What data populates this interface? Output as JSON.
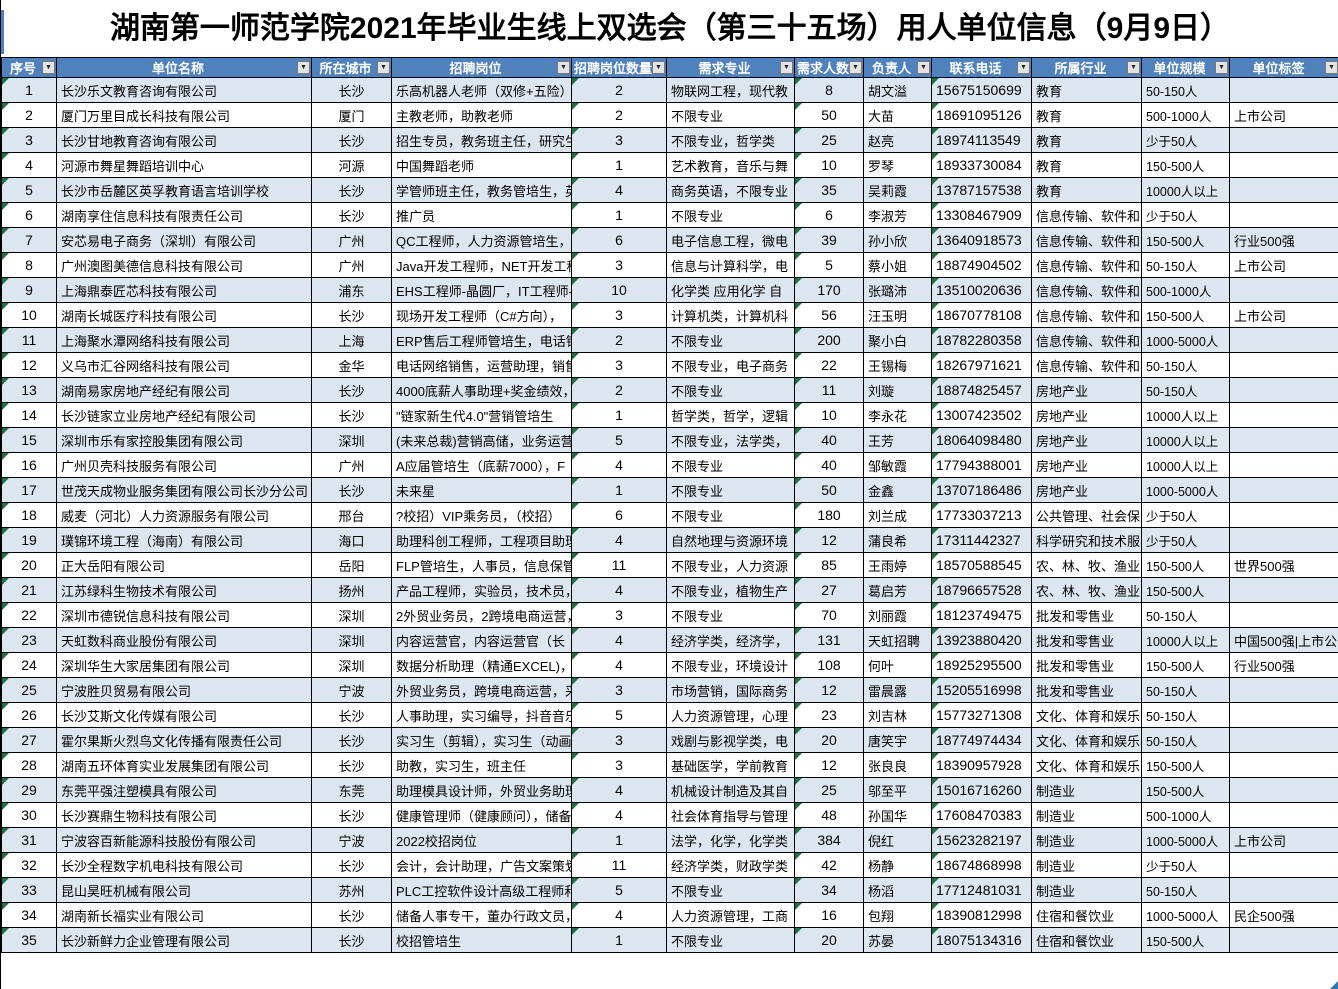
{
  "title": "湖南第一师范学院2021年毕业生线上双选会（第三十五场）用人单位信息（9月9日）",
  "colors": {
    "header_bg": "#4f81bd",
    "row_stripe": "#dce6f1",
    "row_alt": "#ffffff",
    "grid_border": "#000000",
    "error_triangle_green": "#1e7145",
    "corner_marker_blue": "#2e75b6"
  },
  "icons": {
    "filter_dropdown": "▼"
  },
  "error_indicator_columns": [
    0,
    4,
    6,
    8
  ],
  "columns": [
    {
      "key": "xuhao",
      "label": "序号"
    },
    {
      "key": "danwei",
      "label": "单位名称"
    },
    {
      "key": "chengshi",
      "label": "所在城市"
    },
    {
      "key": "gangwei",
      "label": "招聘岗位"
    },
    {
      "key": "shuliang",
      "label": "招聘岗位数量"
    },
    {
      "key": "zhuanye",
      "label": "需求专业"
    },
    {
      "key": "renshu",
      "label": "需求人数"
    },
    {
      "key": "fuzeren",
      "label": "负责人"
    },
    {
      "key": "dianhua",
      "label": "联系电话"
    },
    {
      "key": "hangye",
      "label": "所属行业"
    },
    {
      "key": "guimo",
      "label": "单位规模"
    },
    {
      "key": "biaoqian",
      "label": "单位标签"
    }
  ],
  "rows": [
    [
      "1",
      "长沙乐文教育咨询有限公司",
      "长沙",
      "乐高机器人老师（双修+五险）",
      "2",
      "物联网工程，现代教",
      "8",
      "胡文溢",
      "15675150699",
      "教育",
      "50-150人",
      ""
    ],
    [
      "2",
      "厦门万里目成长科技有限公司",
      "厦门",
      "主教老师，助教老师",
      "2",
      "不限专业",
      "50",
      "大苗",
      "18691095126",
      "教育",
      "500-1000人",
      "上市公司"
    ],
    [
      "3",
      "长沙甘地教育咨询有限公司",
      "长沙",
      "招生专员，教务班主任，研究生",
      "3",
      "不限专业，哲学类",
      "25",
      "赵亮",
      "18974113549",
      "教育",
      "少于50人",
      ""
    ],
    [
      "4",
      "河源市舞星舞蹈培训中心",
      "河源",
      "中国舞蹈老师",
      "1",
      "艺术教育，音乐与舞",
      "10",
      "罗琴",
      "18933730084",
      "教育",
      "150-500人",
      ""
    ],
    [
      "5",
      "长沙市岳麓区英孚教育语言培训学校",
      "长沙",
      "学管师班主任，教务管培生，英",
      "4",
      "商务英语，不限专业",
      "35",
      "吴莉霞",
      "13787157538",
      "教育",
      "10000人以上",
      ""
    ],
    [
      "6",
      "湖南享住信息科技有限责任公司",
      "长沙",
      "推广员",
      "1",
      "不限专业",
      "6",
      "李淑芳",
      "13308467909",
      "信息传输、软件和",
      "少于50人",
      ""
    ],
    [
      "7",
      "安芯易电子商务（深圳）有限公司",
      "广州",
      "QC工程师，人力资源管培生，",
      "6",
      "电子信息工程，微电",
      "39",
      "孙小欣",
      "13640918573",
      "信息传输、软件和",
      "150-500人",
      "行业500强"
    ],
    [
      "8",
      "广州澳图美德信息科技有限公司",
      "广州",
      "Java开发工程师，NET开发工程",
      "3",
      "信息与计算科学，电",
      "5",
      "蔡小姐",
      "18874904502",
      "信息传输、软件和",
      "50-150人",
      "上市公司"
    ],
    [
      "9",
      "上海鼎泰匠芯科技有限公司",
      "浦东",
      "EHS工程师-晶圆厂，IT工程师-",
      "10",
      "化学类 应用化学 自",
      "170",
      "张璐沛",
      "13510020636",
      "信息传输、软件和",
      "500-1000人",
      ""
    ],
    [
      "10",
      "湖南长城医疗科技有限公司",
      "长沙",
      "现场开发工程师（C#方向），",
      "3",
      "计算机类，计算机科",
      "56",
      "汪玉明",
      "18670778108",
      "信息传输、软件和",
      "150-500人",
      "上市公司"
    ],
    [
      "11",
      "上海聚水潭网络科技有限公司",
      "上海",
      "ERP售后工程师管培生，电话销",
      "2",
      "不限专业",
      "200",
      "聚小白",
      "18782280358",
      "信息传输、软件和",
      "1000-5000人",
      ""
    ],
    [
      "12",
      "义乌市汇谷网络科技有限公司",
      "金华",
      "电话网络销售，运营助理，销售",
      "3",
      "不限专业，电子商务",
      "22",
      "王锡梅",
      "18267971621",
      "信息传输、软件和",
      "50-150人",
      ""
    ],
    [
      "13",
      "湖南易家房地产经纪有限公司",
      "长沙",
      "4000底薪人事助理+奖金绩效，",
      "2",
      "不限专业",
      "11",
      "刘璇",
      "18874825457",
      "房地产业",
      "50-150人",
      ""
    ],
    [
      "14",
      "长沙链家立业房地产经纪有限公司",
      "长沙",
      "\"链家新生代4.0\"营销管培生",
      "1",
      "哲学类，哲学，逻辑",
      "10",
      "李永花",
      "13007423502",
      "房地产业",
      "10000人以上",
      ""
    ],
    [
      "15",
      "深圳市乐有家控股集团有限公司",
      "深圳",
      "(未来总裁)营销高储，业务运营",
      "5",
      "不限专业，法学类，",
      "40",
      "王芳",
      "18064098480",
      "房地产业",
      "10000人以上",
      ""
    ],
    [
      "16",
      "广州贝壳科技服务有限公司",
      "广州",
      "A应届管培生（底薪7000），F",
      "4",
      "不限专业",
      "40",
      "邹敏霞",
      "17794388001",
      "房地产业",
      "10000人以上",
      ""
    ],
    [
      "17",
      "世茂天成物业服务集团有限公司长沙分公司",
      "长沙",
      "未来星",
      "1",
      "不限专业",
      "50",
      "金鑫",
      "13707186486",
      "房地产业",
      "1000-5000人",
      ""
    ],
    [
      "18",
      "威麦（河北）人力资源服务有限公司",
      "邢台",
      "?校招）VIP乘务员，（校招）",
      "6",
      "不限专业",
      "180",
      "刘兰成",
      "17733037213",
      "公共管理、社会保",
      "少于50人",
      ""
    ],
    [
      "19",
      "璞锦环境工程（海南）有限公司",
      "海口",
      "助理科创工程师，工程项目助理",
      "4",
      "自然地理与资源环境",
      "12",
      "蒲良希",
      "17311442327",
      "科学研究和技术服",
      "少于50人",
      ""
    ],
    [
      "20",
      "正大岳阳有限公司",
      "岳阳",
      "FLP管培生，人事员，信息保管",
      "11",
      "不限专业，人力资源",
      "85",
      "王雨婷",
      "18570588545",
      "农、林、牧、渔业",
      "150-500人",
      "世界500强"
    ],
    [
      "21",
      "江苏绿科生物技术有限公司",
      "扬州",
      "产品工程师，实验员，技术员，",
      "4",
      "不限专业，植物生产",
      "27",
      "葛启芳",
      "18796657528",
      "农、林、牧、渔业",
      "150-500人",
      ""
    ],
    [
      "22",
      "深圳市德锐信息科技有限公司",
      "深圳",
      "2外贸业务员，2跨境电商运营，",
      "3",
      "不限专业",
      "70",
      "刘丽霞",
      "18123749475",
      "批发和零售业",
      "50-150人",
      ""
    ],
    [
      "23",
      "天虹数科商业股份有限公司",
      "深圳",
      "内容运营官，内容运营官（长",
      "4",
      "经济学类，经济学，",
      "131",
      "天虹招聘",
      "13923880420",
      "批发和零售业",
      "10000人以上",
      "中国500强|上市公司"
    ],
    [
      "24",
      "深圳华生大家居集团有限公司",
      "深圳",
      "数据分析助理（精通EXCEL)，",
      "4",
      "不限专业，环境设计",
      "108",
      "何叶",
      "18925295500",
      "批发和零售业",
      "150-500人",
      "行业500强"
    ],
    [
      "25",
      "宁波胜贝贸易有限公司",
      "宁波",
      "外贸业务员，跨境电商运营，采",
      "3",
      "市场营销，国际商务",
      "12",
      "雷晨露",
      "15205516998",
      "批发和零售业",
      "50-150人",
      ""
    ],
    [
      "26",
      "长沙艾斯文化传媒有限公司",
      "长沙",
      "人事助理，实习编导，抖音音乐",
      "5",
      "人力资源管理，心理",
      "23",
      "刘吉林",
      "15773271308",
      "文化、体育和娱乐",
      "50-150人",
      ""
    ],
    [
      "27",
      "霍尔果斯火烈鸟文化传播有限责任公司",
      "长沙",
      "实习生（剪辑），实习生（动画",
      "3",
      "戏剧与影视学类，电",
      "20",
      "唐笑宇",
      "18774974434",
      "文化、体育和娱乐",
      "50-150人",
      ""
    ],
    [
      "28",
      "湖南五环体育实业发展集团有限公司",
      "长沙",
      "助教，实习生，班主任",
      "3",
      "基础医学，学前教育",
      "12",
      "张良良",
      "18390957928",
      "文化、体育和娱乐",
      "150-500人",
      ""
    ],
    [
      "29",
      "东莞平强注塑模具有限公司",
      "东莞",
      "助理模具设计师，外贸业务助理",
      "4",
      "机械设计制造及其自",
      "25",
      "邬至平",
      "15016716260",
      "制造业",
      "150-500人",
      ""
    ],
    [
      "30",
      "长沙赛鼎生物科技有限公司",
      "长沙",
      "健康管理师（健康顾问），储备",
      "4",
      "社会体育指导与管理",
      "48",
      "孙国华",
      "17608470383",
      "制造业",
      "500-1000人",
      ""
    ],
    [
      "31",
      "宁波容百新能源科技股份有限公司",
      "宁波",
      "2022校招岗位",
      "1",
      "法学，化学，化学类",
      "384",
      "倪红",
      "15623282197",
      "制造业",
      "1000-5000人",
      "上市公司"
    ],
    [
      "32",
      "长沙全程数字机电科技有限公司",
      "长沙",
      "会计，会计助理，广告文案策划",
      "11",
      "经济学类，财政学类",
      "42",
      "杨静",
      "18674868998",
      "制造业",
      "少于50人",
      ""
    ],
    [
      "33",
      "昆山昊旺机械有限公司",
      "苏州",
      "PLC工控软件设计高级工程师和",
      "5",
      "不限专业",
      "34",
      "杨滔",
      "17712481031",
      "制造业",
      "50-150人",
      ""
    ],
    [
      "34",
      "湖南新长福实业有限公司",
      "长沙",
      "储备人事专干，董办行政文员，",
      "4",
      "人力资源管理，工商",
      "16",
      "包翔",
      "18390812998",
      "住宿和餐饮业",
      "1000-5000人",
      "民企500强"
    ],
    [
      "35",
      "长沙新鲜力企业管理有限公司",
      "长沙",
      "校招管培生",
      "1",
      "不限专业",
      "20",
      "苏晏",
      "18075134316",
      "住宿和餐饮业",
      "150-500人",
      ""
    ]
  ]
}
